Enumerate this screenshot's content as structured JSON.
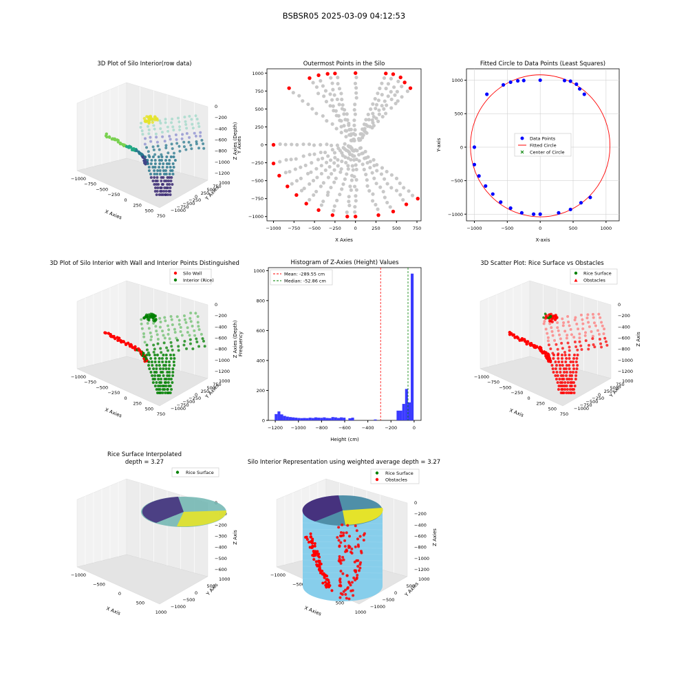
{
  "figure": {
    "suptitle": "BSBSR05 2025-03-09 04:12:53"
  },
  "colors": {
    "red": "#ff0000",
    "green": "#008000",
    "blue": "#0000ff",
    "gray": "#c8c8c8",
    "hist": "#3a3aff",
    "cyl": "#87ceeb",
    "yellow": "#e5e32a",
    "purple": "#46327e",
    "teal": "#2a9d8f"
  },
  "chart_data": [
    {
      "type": "scatter3d",
      "title": "3D Plot of Silo Interior(row data)",
      "xlabel": "X Axies",
      "ylabel": "Y Axies",
      "zlabel": "Z Axies (Depth)",
      "xticks": [
        "−1000",
        "−750",
        "−500",
        "−250",
        "0",
        "250",
        "500",
        "750"
      ],
      "yticks": [
        "1000",
        "750",
        "500",
        "250",
        "0",
        "−250",
        "−500",
        "−750",
        "−1000"
      ],
      "zticks": [
        "0",
        "−200",
        "−400",
        "−600",
        "−800",
        "−1000",
        "−1200"
      ]
    },
    {
      "type": "scatter",
      "title": "Outermost Points in the Silo",
      "xlabel": "X Axies",
      "ylabel": "Y Axies",
      "xticks": [
        "−1000",
        "−750",
        "−500",
        "−250",
        "0",
        "250",
        "500",
        "750"
      ],
      "yticks": [
        "1000",
        "750",
        "500",
        "250",
        "0",
        "−250",
        "−500",
        "−750",
        "−1000"
      ],
      "xlim": [
        -1080,
        800
      ],
      "ylim": [
        -1060,
        1060
      ],
      "outer_points": [
        [
          -1000,
          0
        ],
        [
          -1000,
          -260
        ],
        [
          -930,
          -430
        ],
        [
          -830,
          -580
        ],
        [
          -720,
          -700
        ],
        [
          -600,
          -820
        ],
        [
          -450,
          -910
        ],
        [
          -280,
          -980
        ],
        [
          -100,
          -1000
        ],
        [
          0,
          -1000
        ],
        [
          280,
          -980
        ],
        [
          460,
          -930
        ],
        [
          620,
          -830
        ],
        [
          760,
          -750
        ],
        [
          -810,
          790
        ],
        [
          -560,
          930
        ],
        [
          -450,
          970
        ],
        [
          -340,
          990
        ],
        [
          -250,
          995
        ],
        [
          0,
          1000
        ],
        [
          370,
          995
        ],
        [
          460,
          985
        ],
        [
          550,
          940
        ],
        [
          600,
          870
        ],
        [
          670,
          790
        ]
      ]
    },
    {
      "type": "scatter",
      "title": "Fitted Circle to Data Points (Least Squares)",
      "xlabel": "X-axis",
      "ylabel": "Y-axis",
      "xticks": [
        "−1000",
        "−500",
        "0",
        "500",
        "1000"
      ],
      "yticks": [
        "1000",
        "500",
        "0",
        "−500",
        "−1000"
      ],
      "xlim": [
        -1120,
        1200
      ],
      "ylim": [
        -1100,
        1170
      ],
      "legend": [
        "Data Points",
        "Fitted Circle",
        "Center of Circle"
      ],
      "circle": {
        "cx": 0,
        "cy": 20,
        "r": 1060
      },
      "points": [
        [
          -1000,
          0
        ],
        [
          -1000,
          -260
        ],
        [
          -930,
          -430
        ],
        [
          -830,
          -580
        ],
        [
          -720,
          -700
        ],
        [
          -600,
          -820
        ],
        [
          -450,
          -910
        ],
        [
          -280,
          -980
        ],
        [
          -100,
          -1000
        ],
        [
          0,
          -1000
        ],
        [
          280,
          -980
        ],
        [
          460,
          -930
        ],
        [
          620,
          -830
        ],
        [
          760,
          -750
        ],
        [
          -810,
          790
        ],
        [
          -560,
          930
        ],
        [
          -450,
          970
        ],
        [
          -340,
          990
        ],
        [
          -250,
          995
        ],
        [
          0,
          1000
        ],
        [
          370,
          995
        ],
        [
          460,
          985
        ],
        [
          550,
          940
        ],
        [
          600,
          870
        ],
        [
          670,
          790
        ]
      ]
    },
    {
      "type": "scatter3d",
      "title": "3D Plot of Silo Interior with Wall and Interior Points Distinguished",
      "xlabel": "X Axies",
      "ylabel": "Y Axies",
      "zlabel": "Z Axies (Depth)",
      "xticks": [
        "−1000",
        "−750",
        "−500",
        "−250",
        "0",
        "250",
        "500",
        "750"
      ],
      "yticks": [
        "1000",
        "750",
        "500",
        "250",
        "0",
        "−250",
        "−500",
        "−750",
        "−1000"
      ],
      "zticks": [
        "0",
        "−200",
        "−400",
        "−600",
        "−800",
        "−1000",
        "−1200"
      ],
      "legend": [
        "Silo Wall",
        "Interior (Rice)"
      ]
    },
    {
      "type": "histogram",
      "title": "Histogram of Z-Axies (Height) Values",
      "xlabel": "Height (cm)",
      "ylabel": "Frequency",
      "xticks": [
        "−1200",
        "−1000",
        "−800",
        "−600",
        "−400",
        "−200",
        "0"
      ],
      "yticks": [
        "0",
        "200",
        "400",
        "600",
        "800",
        "1000"
      ],
      "xlim": [
        -1260,
        60
      ],
      "ylim": [
        0,
        1020
      ],
      "bin_start": -1205,
      "bin_width": 24.5,
      "counts": [
        42,
        60,
        40,
        30,
        25,
        22,
        20,
        18,
        16,
        15,
        16,
        15,
        18,
        16,
        20,
        18,
        17,
        20,
        16,
        15,
        22,
        20,
        16,
        20,
        18,
        0,
        14,
        18,
        0,
        0,
        0,
        0,
        0,
        0,
        0,
        6,
        0,
        0,
        0,
        0,
        0,
        0,
        0,
        65,
        65,
        110,
        210,
        120,
        980
      ],
      "mean": -289.55,
      "median": -52.86,
      "legend": [
        "Mean: -289.55 cm",
        "Median: -52.86 cm"
      ]
    },
    {
      "type": "scatter3d",
      "title": "3D Scatter Plot: Rice Surface vs Obstacles",
      "xlabel": "X Axis",
      "ylabel": "Y Axis",
      "zlabel": "Z Axis",
      "xticks": [
        "−1000",
        "−750",
        "−500",
        "−250",
        "0",
        "250",
        "500",
        "750"
      ],
      "yticks": [
        "1000",
        "750",
        "500",
        "250",
        "0",
        "−250",
        "−500",
        "−750",
        "−1000"
      ],
      "zticks": [
        "0",
        "−200",
        "−400",
        "−600",
        "−800",
        "−1000",
        "−1200"
      ],
      "legend": [
        "Rice Surface",
        "Obstacles"
      ]
    },
    {
      "type": "surface3d",
      "title": "Rice Surface Interpolated",
      "subtitle": "depth = 3.27",
      "xlabel": "X Axis",
      "ylabel": "Y Axis",
      "zlabel": "Z Axis",
      "xticks": [
        "−1000",
        "−500",
        "0",
        "500",
        "1000"
      ],
      "yticks": [
        "1000",
        "500",
        "0",
        "−500",
        "−1000"
      ],
      "zticks": [
        "0",
        "−100",
        "−200",
        "−300",
        "−400",
        "−500",
        "−600"
      ],
      "legend": [
        "Rice Surface"
      ]
    },
    {
      "type": "surface3d",
      "title": "Silo Interior Representation using weighted average depth = 3.27",
      "xlabel": "X Axies",
      "ylabel": "Y Axies",
      "zlabel": "Z Axies",
      "xticks": [
        "−1000",
        "−500",
        "0",
        "500",
        "1000"
      ],
      "yticks": [
        "1000",
        "500",
        "0",
        "−500",
        "−1000"
      ],
      "zticks": [
        "0",
        "−200",
        "−400",
        "−600",
        "−800",
        "−1000",
        "−1200"
      ],
      "legend": [
        "Rice Surface",
        "Obstacles"
      ]
    }
  ]
}
